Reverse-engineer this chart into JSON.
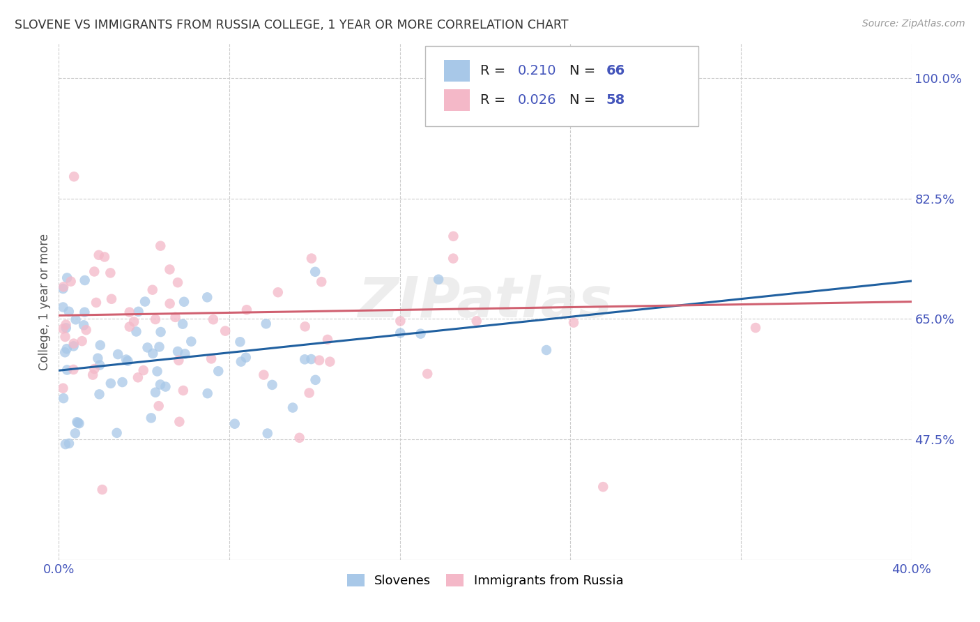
{
  "title": "SLOVENE VS IMMIGRANTS FROM RUSSIA COLLEGE, 1 YEAR OR MORE CORRELATION CHART",
  "source": "Source: ZipAtlas.com",
  "ylabel": "College, 1 year or more",
  "xlim": [
    0.0,
    0.4
  ],
  "ylim": [
    0.3,
    1.05
  ],
  "xtick_positions": [
    0.0,
    0.08,
    0.16,
    0.24,
    0.32,
    0.4
  ],
  "xtick_labels": [
    "0.0%",
    "",
    "",
    "",
    "",
    "40.0%"
  ],
  "ytick_positions": [
    1.0,
    0.825,
    0.65,
    0.475
  ],
  "ytick_labels": [
    "100.0%",
    "82.5%",
    "65.0%",
    "47.5%"
  ],
  "blue_R": 0.21,
  "blue_N": 66,
  "pink_R": 0.026,
  "pink_N": 58,
  "blue_color": "#a8c8e8",
  "pink_color": "#f4b8c8",
  "blue_line_color": "#2060a0",
  "pink_line_color": "#d06070",
  "legend_label_blue": "Slovenes",
  "legend_label_pink": "Immigrants from Russia",
  "watermark": "ZIPatlas",
  "background_color": "#ffffff",
  "grid_color": "#cccccc",
  "title_color": "#333333",
  "axis_label_color": "#4455bb",
  "blue_trend_x0": 0.0,
  "blue_trend_y0": 0.575,
  "blue_trend_x1": 0.4,
  "blue_trend_y1": 0.705,
  "pink_trend_x0": 0.0,
  "pink_trend_y0": 0.655,
  "pink_trend_x1": 0.4,
  "pink_trend_y1": 0.675
}
